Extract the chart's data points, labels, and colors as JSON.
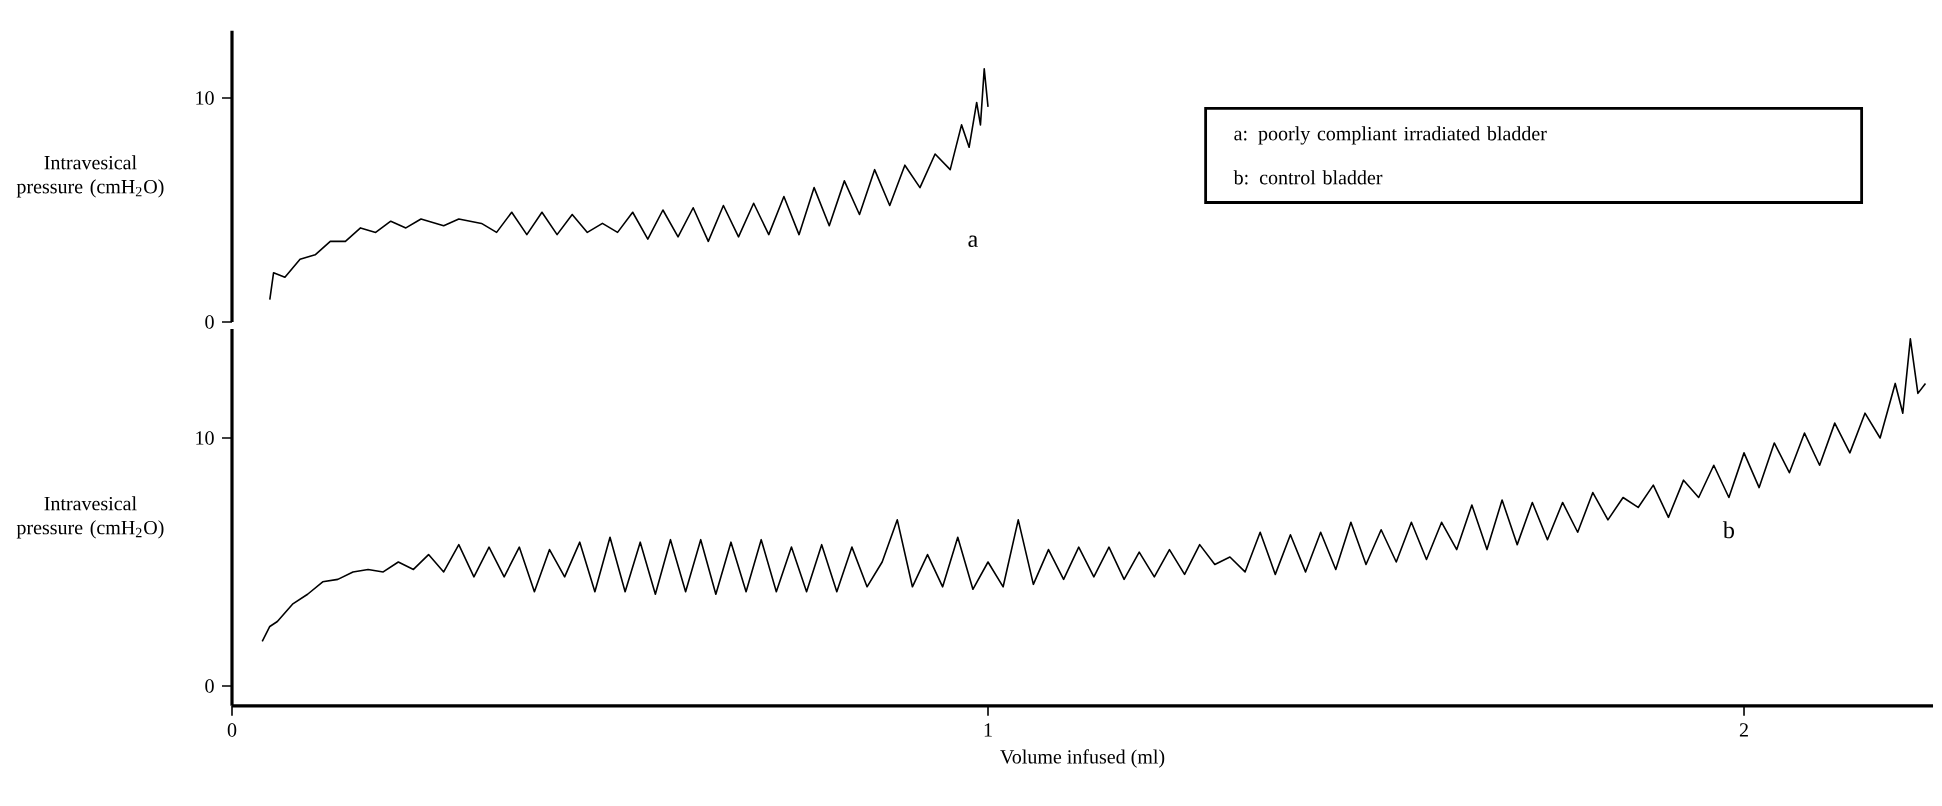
{
  "chart_data": [
    {
      "type": "line",
      "ylabel": "Intravesical pressure (cmH$_{2}$O)",
      "color": "#000000",
      "xlim": [
        0,
        1
      ],
      "xticks": [
        0,
        1
      ],
      "ylim": [
        0,
        13
      ],
      "yticks": [
        0,
        10
      ],
      "tick_labels": "y",
      "annotations": [
        "a: poorly compliant irradiated bladder",
        "b: control bladder",
        "a"
      ],
      "x": [
        0.05,
        0.055,
        0.07,
        0.09,
        0.11,
        0.13,
        0.15,
        0.17,
        0.19,
        0.21,
        0.23,
        0.25,
        0.28,
        0.3,
        0.33,
        0.35,
        0.37,
        0.39,
        0.41,
        0.43,
        0.45,
        0.47,
        0.49,
        0.51,
        0.53,
        0.55,
        0.57,
        0.59,
        0.61,
        0.63,
        0.65,
        0.67,
        0.69,
        0.71,
        0.73,
        0.75,
        0.77,
        0.79,
        0.81,
        0.83,
        0.85,
        0.87,
        0.89,
        0.91,
        0.93,
        0.95,
        0.965,
        0.975,
        0.985,
        0.99,
        0.995,
        1.0
      ],
      "values": [
        1.0,
        2.2,
        2.0,
        2.8,
        3.0,
        3.6,
        3.6,
        4.2,
        4.0,
        4.5,
        4.2,
        4.6,
        4.3,
        4.6,
        4.4,
        4.0,
        4.9,
        3.9,
        4.9,
        3.9,
        4.8,
        4.0,
        4.4,
        4.0,
        4.9,
        3.7,
        5.0,
        3.8,
        5.1,
        3.6,
        5.2,
        3.8,
        5.3,
        3.9,
        5.6,
        3.9,
        6.0,
        4.3,
        6.3,
        4.8,
        6.8,
        5.2,
        7.0,
        6.0,
        7.5,
        6.8,
        8.8,
        7.8,
        9.8,
        8.8,
        11.3,
        9.6
      ]
    },
    {
      "type": "line",
      "ylabel": "Intravesical pressure (cmH$_{2}$O)",
      "xlabel": "Volume infused (ml)",
      "color": "#000000",
      "xlim": [
        0,
        2.25
      ],
      "ylim": [
        -0.8,
        14.4
      ],
      "xticks": [
        0,
        1,
        2
      ],
      "yticks": [
        0,
        10
      ],
      "annotations": [
        "b"
      ],
      "x": [
        0.04,
        0.05,
        0.06,
        0.08,
        0.1,
        0.12,
        0.14,
        0.16,
        0.18,
        0.2,
        0.22,
        0.24,
        0.26,
        0.28,
        0.3,
        0.32,
        0.34,
        0.36,
        0.38,
        0.4,
        0.42,
        0.44,
        0.46,
        0.48,
        0.5,
        0.52,
        0.54,
        0.56,
        0.58,
        0.6,
        0.62,
        0.64,
        0.66,
        0.68,
        0.7,
        0.72,
        0.74,
        0.76,
        0.78,
        0.8,
        0.82,
        0.84,
        0.86,
        0.88,
        0.9,
        0.92,
        0.94,
        0.96,
        0.98,
        1.0,
        1.02,
        1.04,
        1.06,
        1.08,
        1.1,
        1.12,
        1.14,
        1.16,
        1.18,
        1.2,
        1.22,
        1.24,
        1.26,
        1.28,
        1.3,
        1.32,
        1.34,
        1.36,
        1.38,
        1.4,
        1.42,
        1.44,
        1.46,
        1.48,
        1.5,
        1.52,
        1.54,
        1.56,
        1.58,
        1.6,
        1.62,
        1.64,
        1.66,
        1.68,
        1.7,
        1.72,
        1.74,
        1.76,
        1.78,
        1.8,
        1.82,
        1.84,
        1.86,
        1.88,
        1.9,
        1.92,
        1.94,
        1.96,
        1.98,
        2.0,
        2.02,
        2.04,
        2.06,
        2.08,
        2.1,
        2.12,
        2.14,
        2.16,
        2.18,
        2.2,
        2.21,
        2.22,
        2.23,
        2.24
      ],
      "values": [
        1.8,
        2.4,
        2.6,
        3.3,
        3.7,
        4.2,
        4.3,
        4.6,
        4.7,
        4.6,
        5.0,
        4.7,
        5.3,
        4.6,
        5.7,
        4.4,
        5.6,
        4.4,
        5.6,
        3.8,
        5.5,
        4.4,
        5.8,
        3.8,
        6.0,
        3.8,
        5.8,
        3.7,
        5.9,
        3.8,
        5.9,
        3.7,
        5.8,
        3.8,
        5.9,
        3.8,
        5.6,
        3.8,
        5.7,
        3.8,
        5.6,
        4.0,
        5.0,
        6.7,
        4.0,
        5.3,
        4.0,
        6.0,
        3.9,
        5.0,
        4.0,
        6.7,
        4.1,
        5.5,
        4.3,
        5.6,
        4.4,
        5.6,
        4.3,
        5.4,
        4.4,
        5.5,
        4.5,
        5.7,
        4.9,
        5.2,
        4.6,
        6.2,
        4.5,
        6.1,
        4.6,
        6.2,
        4.7,
        6.6,
        4.9,
        6.3,
        5.0,
        6.6,
        5.1,
        6.6,
        5.5,
        7.3,
        5.5,
        7.5,
        5.7,
        7.4,
        5.9,
        7.4,
        6.2,
        7.8,
        6.7,
        7.6,
        7.2,
        8.1,
        6.8,
        8.3,
        7.6,
        8.9,
        7.6,
        9.4,
        8.0,
        9.8,
        8.6,
        10.2,
        8.9,
        10.6,
        9.4,
        11.0,
        10.0,
        12.2,
        11.0,
        14.0,
        11.8,
        12.2
      ]
    }
  ]
}
